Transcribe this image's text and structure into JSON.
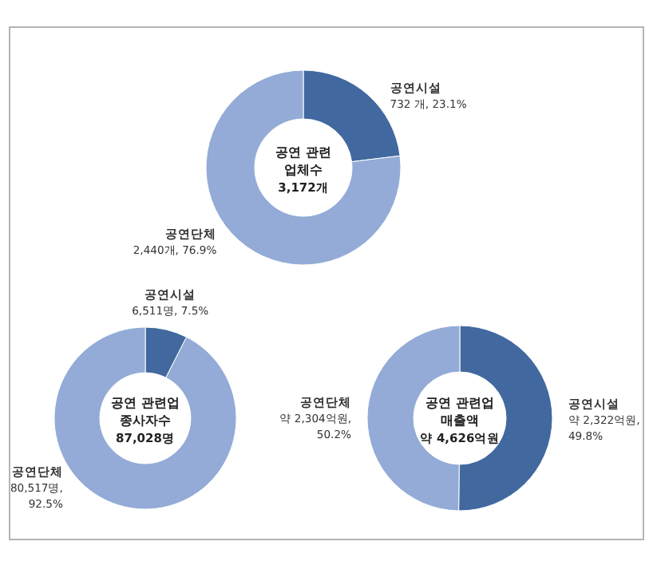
{
  "chart_data": [
    {
      "type": "donut",
      "title": "공연 관련 업체수",
      "subtitle": "3,172개",
      "categories": [
        "공연시설",
        "공연단체"
      ],
      "values": [
        732,
        2440
      ],
      "value_labels": [
        "732 개, 23.1%",
        "2,440개, 76.9%"
      ],
      "colors": [
        "#41699f",
        "#93abd6"
      ]
    },
    {
      "type": "donut",
      "title": "공연 관련업 종사자수",
      "subtitle": "87,028명",
      "categories": [
        "공연시설",
        "공연단체"
      ],
      "values": [
        6511,
        80517
      ],
      "value_labels": [
        "6,511명, 7.5%",
        "80,517명, 92.5%"
      ],
      "colors": [
        "#41699f",
        "#93abd6"
      ]
    },
    {
      "type": "donut",
      "title": "공연 관련업 매출액",
      "subtitle": "약 4,626억원",
      "categories": [
        "공연시설",
        "공연단체"
      ],
      "values": [
        2322,
        2304
      ],
      "value_labels": [
        "약 2,322억원, 49.8%",
        "약 2,304억원, 50.2%"
      ],
      "colors": [
        "#41699f",
        "#93abd6"
      ]
    }
  ]
}
